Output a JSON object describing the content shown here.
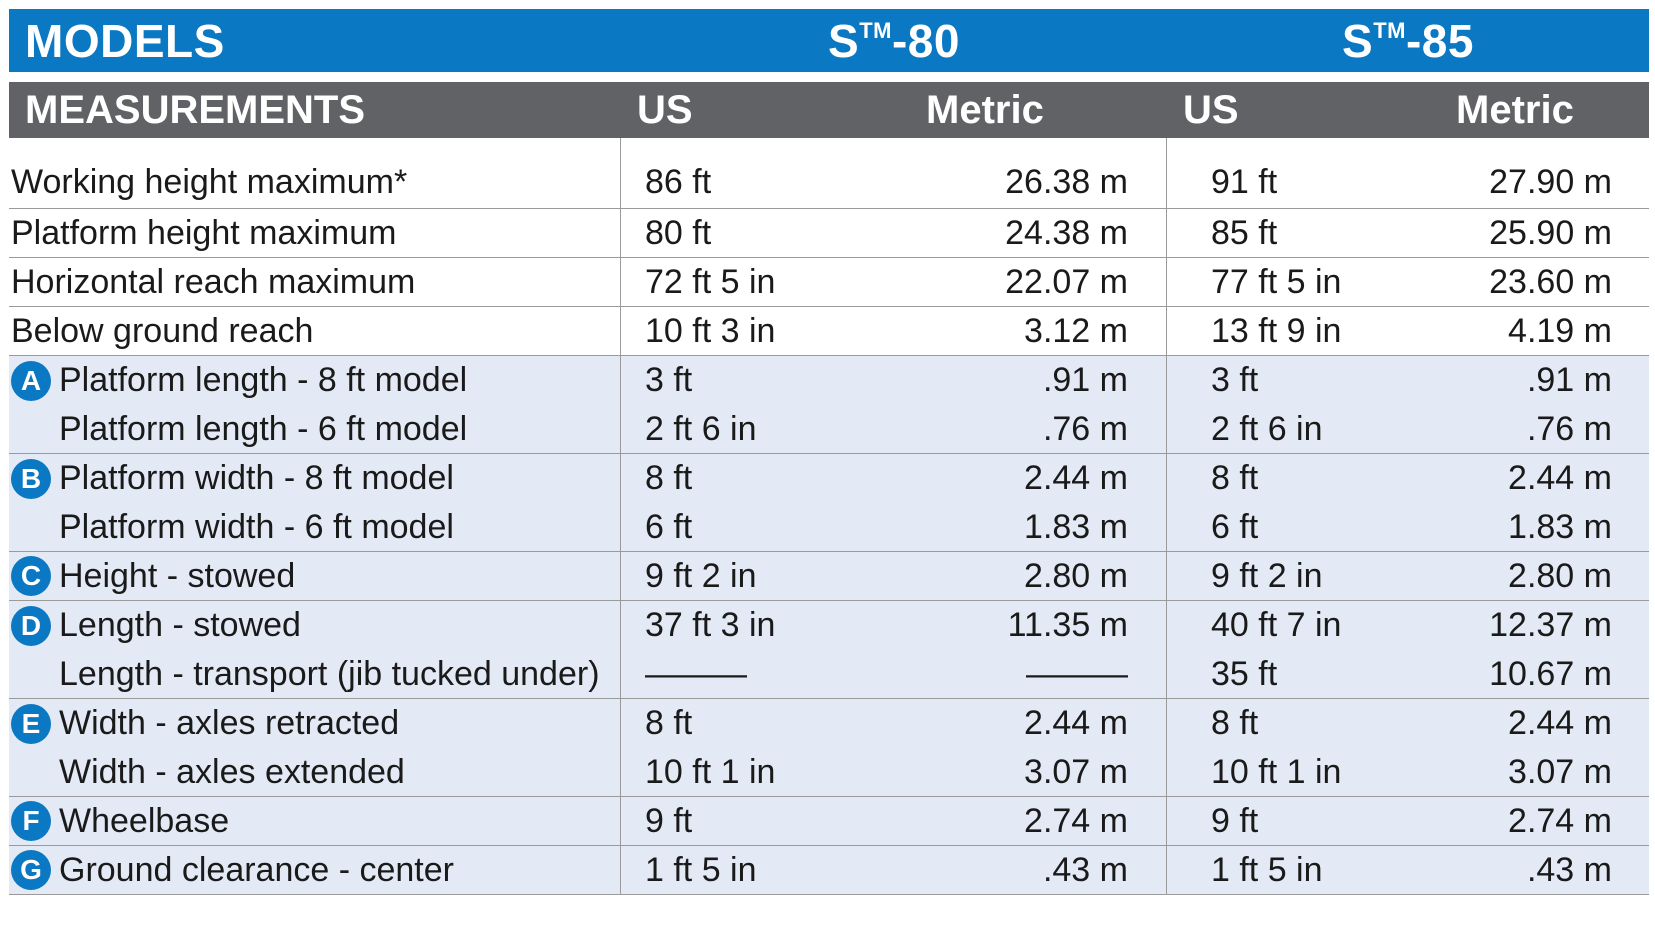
{
  "header": {
    "models_label": "MODELS",
    "model1_prefix": "S",
    "model1_tm": "TM",
    "model1_suffix": "-80",
    "model2_prefix": "S",
    "model2_tm": "TM",
    "model2_suffix": "-85"
  },
  "subheader": {
    "label": "MEASUREMENTS",
    "us1": "US",
    "metric1": "Metric",
    "us2": "US",
    "metric2": "Metric"
  },
  "rows": [
    {
      "badge": "",
      "label": "Working height maximum*",
      "us1": "86 ft",
      "m1": "26.38 m",
      "us2": "91 ft",
      "m2": "27.90 m"
    },
    {
      "badge": "",
      "label": "Platform height maximum",
      "us1": "80 ft",
      "m1": "24.38 m",
      "us2": "85 ft",
      "m2": "25.90 m"
    },
    {
      "badge": "",
      "label": "Horizontal reach maximum",
      "us1": "72 ft 5 in",
      "m1": "22.07 m",
      "us2": "77 ft 5 in",
      "m2": "23.60 m"
    },
    {
      "badge": "",
      "label": "Below ground reach",
      "us1": "10 ft 3 in",
      "m1": "3.12 m",
      "us2": "13 ft 9 in",
      "m2": "4.19 m"
    },
    {
      "badge": "A",
      "label": "Platform length - 8 ft model",
      "us1": "3 ft",
      "m1": ".91 m",
      "us2": "3 ft",
      "m2": ".91 m"
    },
    {
      "badge": "",
      "label": "Platform length - 6 ft model",
      "us1": "2 ft 6 in",
      "m1": ".76 m",
      "us2": "2 ft 6 in",
      "m2": ".76 m"
    },
    {
      "badge": "B",
      "label": "Platform width - 8 ft model",
      "us1": "8 ft",
      "m1": "2.44 m",
      "us2": "8 ft",
      "m2": "2.44 m"
    },
    {
      "badge": "",
      "label": "Platform width - 6 ft model",
      "us1": "6 ft",
      "m1": "1.83 m",
      "us2": "6 ft",
      "m2": "1.83 m"
    },
    {
      "badge": "C",
      "label": "Height - stowed",
      "us1": "9 ft 2 in",
      "m1": "2.80 m",
      "us2": "9 ft 2 in",
      "m2": "2.80 m"
    },
    {
      "badge": "D",
      "label": "Length - stowed",
      "us1": "37 ft 3 in",
      "m1": "11.35 m",
      "us2": "40 ft 7 in",
      "m2": "12.37 m"
    },
    {
      "badge": "",
      "label": "Length - transport (jib tucked under)",
      "us1": "———",
      "m1": "———",
      "us2": "35 ft",
      "m2": "10.67 m"
    },
    {
      "badge": "E",
      "label": "Width - axles retracted",
      "us1": "8 ft",
      "m1": "2.44 m",
      "us2": "8 ft",
      "m2": "2.44 m"
    },
    {
      "badge": "",
      "label": "Width - axles extended",
      "us1": "10 ft 1 in",
      "m1": "3.07 m",
      "us2": "10 ft 1 in",
      "m2": "3.07 m"
    },
    {
      "badge": "F",
      "label": "Wheelbase",
      "us1": "9 ft",
      "m1": "2.74 m",
      "us2": "9 ft",
      "m2": "2.74 m"
    },
    {
      "badge": "G",
      "label": "Ground clearance - center",
      "us1": "1 ft 5 in",
      "m1": ".43 m",
      "us2": "1 ft 5 in",
      "m2": ".43 m"
    }
  ]
}
